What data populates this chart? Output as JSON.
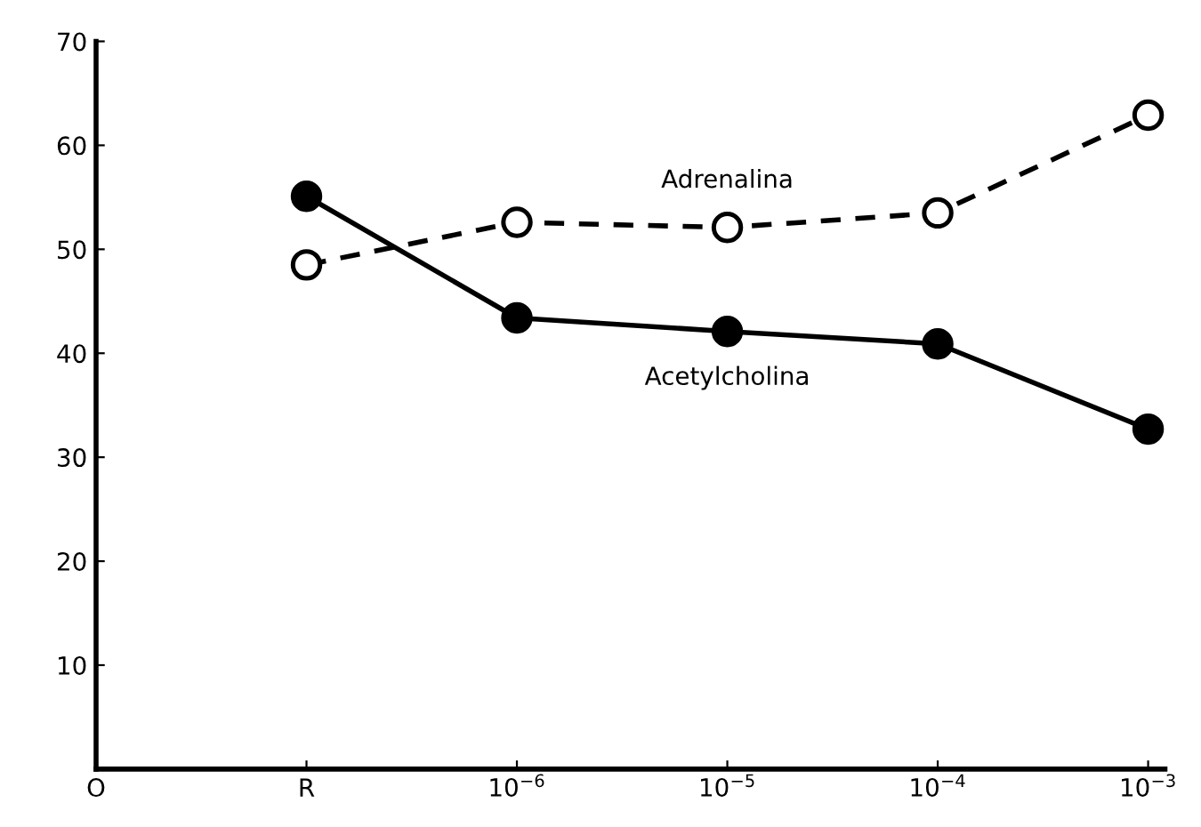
{
  "chart_data": {
    "type": "line",
    "categories": [
      "O",
      "R",
      "10$^{−6}$",
      "10$^{−5}$",
      "10$^{−4}$",
      "10$^{−3}$"
    ],
    "series": [
      {
        "name": "Adrenalina",
        "color": "#000000",
        "colors": [
          null,
          "#ffffff",
          "#ffffff",
          "#ffffff",
          "#ffffff",
          "#ffffff"
        ],
        "line_style": "dashed",
        "values": [
          null,
          48.5,
          52.6,
          52.1,
          53.5,
          62.9
        ]
      },
      {
        "name": "Acetylcholina",
        "color": "#000000",
        "colors": [
          null,
          "#000000",
          "#000000",
          "#000000",
          "#000000",
          "#000000"
        ],
        "line_style": "solid",
        "values": [
          null,
          55.1,
          43.4,
          42.1,
          40.9,
          32.7
        ]
      }
    ],
    "ylim": [
      0,
      70
    ],
    "yticks": [
      10,
      20,
      30,
      40,
      50,
      60,
      70
    ],
    "marker": "circle",
    "grid": false,
    "legend": false
  }
}
